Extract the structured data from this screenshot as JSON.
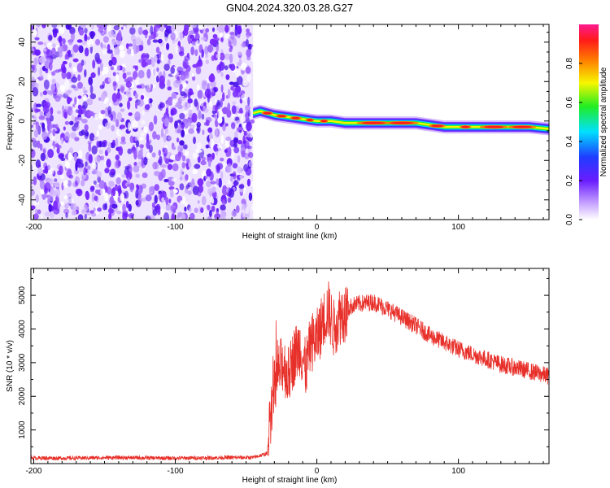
{
  "title": "GN04.2024.320.03.28.G27",
  "colors": {
    "snr_line": "#e8302a",
    "axis": "#000000",
    "noise_purple": "#6a1cff"
  },
  "chart_data": [
    {
      "type": "heatmap",
      "title": "",
      "xlabel": "Height of straight line (km)",
      "ylabel": "Frequency (Hz)",
      "xlim": [
        -202,
        164
      ],
      "ylim": [
        -50,
        49
      ],
      "x_ticks": [
        -200,
        -100,
        0,
        100
      ],
      "x_tick_labels": [
        "-200",
        "-100",
        "0",
        "100"
      ],
      "y_ticks": [
        -40,
        -20,
        0,
        20,
        40
      ],
      "y_tick_labels": [
        "-40",
        "-20",
        "0",
        "20",
        "40"
      ],
      "noise_region_x": [
        -202,
        -45
      ],
      "signal_track": {
        "x": [
          -45,
          -40,
          -30,
          -20,
          -10,
          0,
          10,
          20,
          40,
          60,
          70,
          80,
          90,
          100,
          110,
          120,
          130,
          140,
          150,
          164
        ],
        "freq": [
          4,
          5,
          3,
          2,
          1,
          0,
          0,
          -1,
          -1,
          -1,
          -1,
          -2,
          -3,
          -3,
          -3,
          -3,
          -3,
          -3,
          -3,
          -4
        ]
      },
      "colorbar": {
        "label": "Normalized spectral amplitude",
        "range": [
          0,
          1
        ],
        "ticks": [
          0.0,
          0.2,
          0.4,
          0.6,
          0.8
        ],
        "tick_labels": [
          "0.0",
          "0.2",
          "0.4",
          "0.6",
          "0.8"
        ],
        "colormap": "rainbow (white-purple-blue-cyan-green-yellow-red-magenta)"
      }
    },
    {
      "type": "line",
      "title": "",
      "xlabel": "Height of straight line (km)",
      "ylabel": "SNR (10 * v/v)",
      "xlim": [
        -202,
        164
      ],
      "ylim": [
        0,
        5800
      ],
      "x_ticks": [
        -200,
        -100,
        0,
        100
      ],
      "x_tick_labels": [
        "-200",
        "-100",
        "0",
        "100"
      ],
      "y_ticks": [
        1000,
        2000,
        3000,
        4000,
        5000
      ],
      "y_tick_labels": [
        "1000",
        "2000",
        "3000",
        "4000",
        "5000"
      ],
      "series": [
        {
          "x": [
            -202,
            -180,
            -160,
            -140,
            -120,
            -100,
            -80,
            -60,
            -45,
            -35,
            -32,
            -28,
            -24,
            -20,
            -16,
            -12,
            -8,
            -4,
            0,
            4,
            8,
            12,
            16,
            20,
            25,
            30,
            40,
            50,
            60,
            70,
            80,
            90,
            100,
            110,
            120,
            130,
            140,
            150,
            164
          ],
          "y": [
            170,
            160,
            170,
            180,
            170,
            160,
            170,
            180,
            180,
            300,
            1800,
            2600,
            3000,
            2600,
            3200,
            3500,
            2800,
            3600,
            3700,
            4200,
            4600,
            4000,
            4400,
            4500,
            4700,
            4750,
            4800,
            4600,
            4350,
            4100,
            3800,
            3600,
            3400,
            3250,
            3100,
            2950,
            2850,
            2750,
            2600
          ]
        }
      ]
    }
  ]
}
